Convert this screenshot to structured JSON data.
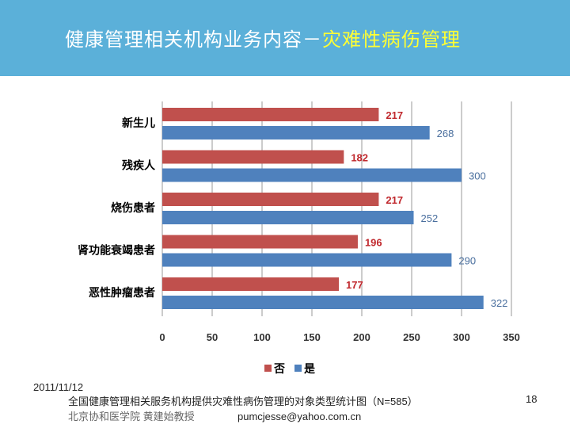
{
  "slide": {
    "title_main": "健康管理相关机构业务内容－",
    "title_highlight": "灾难性病伤管理",
    "colors": {
      "header": "#5bb0d9",
      "title_highlight": "#ffff33"
    }
  },
  "chart_data": {
    "type": "bar",
    "orientation": "horizontal",
    "categories": [
      "新生儿",
      "残疾人",
      "烧伤患者",
      "肾功能衰竭患者",
      "恶性肿瘤患者"
    ],
    "series": [
      {
        "name": "否",
        "color": "#c0504d",
        "values": [
          217,
          182,
          217,
          196,
          177
        ]
      },
      {
        "name": "是",
        "color": "#4f81bd",
        "values": [
          268,
          300,
          252,
          290,
          322
        ]
      }
    ],
    "xlim": [
      0,
      350
    ],
    "xticks": [
      "0",
      "50",
      "100",
      "150",
      "200",
      "250",
      "300",
      "350"
    ],
    "grid": true,
    "legend": "bottom"
  },
  "footer": {
    "date": "2011/11/12",
    "caption": "全国健康管理相关服务机构提供灾难性病伤管理的对象类型统计图（N=585）",
    "author": "北京协和医学院 黄建始教授",
    "email": "pumcjesse@yahoo.com.cn",
    "page": "18"
  }
}
